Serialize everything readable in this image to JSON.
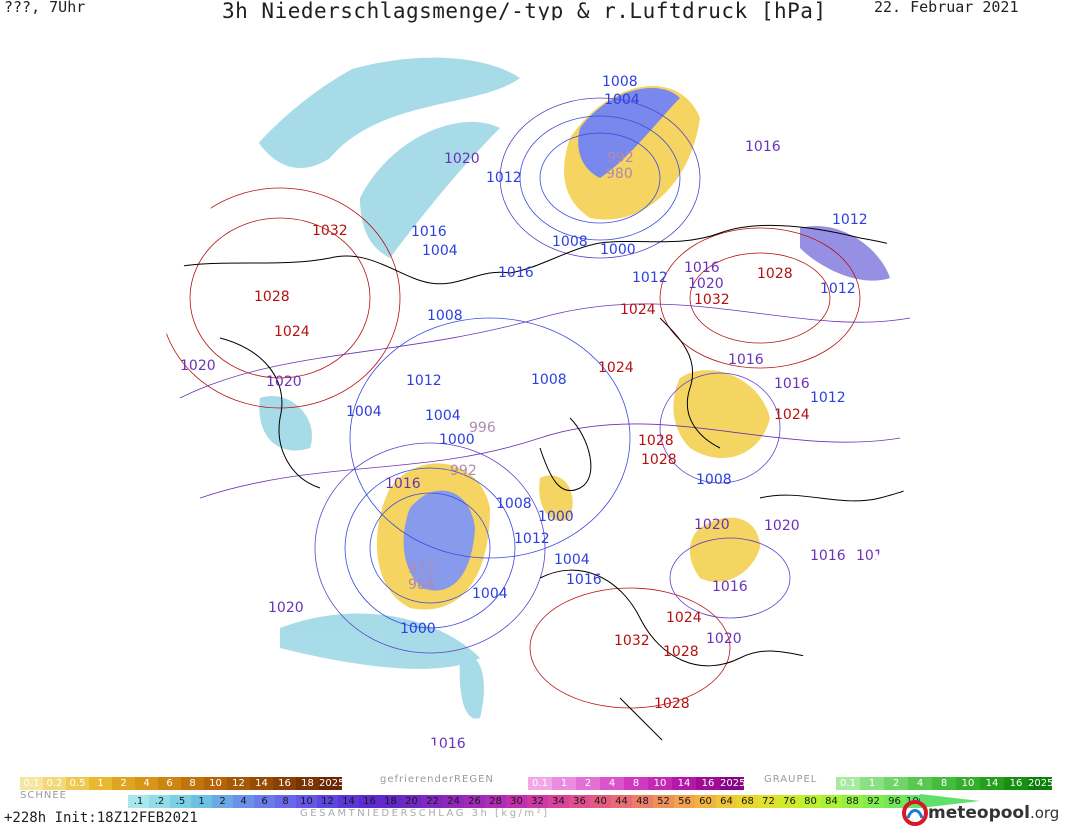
{
  "header": {
    "left": "???, 7Uhr",
    "title": "3h Niederschlagsmenge/-typ & r.Luftdruck [hPa]",
    "date": "22. Februar 2021"
  },
  "map": {
    "pressure_labels": [
      {
        "text": "1008",
        "kind": "low"
      },
      {
        "text": "1004",
        "kind": "low"
      },
      {
        "text": "1016",
        "kind": "mid"
      },
      {
        "text": "1020",
        "kind": "mid"
      },
      {
        "text": "992",
        "kind": "grey"
      },
      {
        "text": "980",
        "kind": "grey"
      },
      {
        "text": "1012",
        "kind": "low"
      },
      {
        "text": "1012",
        "kind": "low"
      },
      {
        "text": "1032",
        "kind": "high"
      },
      {
        "text": "1016",
        "kind": "low"
      },
      {
        "text": "1004",
        "kind": "low"
      },
      {
        "text": "1008",
        "kind": "low"
      },
      {
        "text": "1000",
        "kind": "low"
      },
      {
        "text": "1016",
        "kind": "low"
      },
      {
        "text": "1012",
        "kind": "low"
      },
      {
        "text": "1016",
        "kind": "mid"
      },
      {
        "text": "1020",
        "kind": "mid"
      },
      {
        "text": "1028",
        "kind": "high"
      },
      {
        "text": "1032",
        "kind": "high"
      },
      {
        "text": "1012",
        "kind": "low"
      },
      {
        "text": "1028",
        "kind": "high"
      },
      {
        "text": "1024",
        "kind": "high"
      },
      {
        "text": "1008",
        "kind": "low"
      },
      {
        "text": "1024",
        "kind": "high"
      },
      {
        "text": "1020",
        "kind": "mid"
      },
      {
        "text": "1020",
        "kind": "mid"
      },
      {
        "text": "1012",
        "kind": "low"
      },
      {
        "text": "1008",
        "kind": "low"
      },
      {
        "text": "1024",
        "kind": "high"
      },
      {
        "text": "1016",
        "kind": "mid"
      },
      {
        "text": "1016",
        "kind": "mid"
      },
      {
        "text": "1004",
        "kind": "low"
      },
      {
        "text": "1004",
        "kind": "low"
      },
      {
        "text": "996",
        "kind": "grey"
      },
      {
        "text": "1000",
        "kind": "low"
      },
      {
        "text": "1024",
        "kind": "high"
      },
      {
        "text": "1012",
        "kind": "low"
      },
      {
        "text": "1028",
        "kind": "high"
      },
      {
        "text": "1028",
        "kind": "high"
      },
      {
        "text": "1008",
        "kind": "low"
      },
      {
        "text": "992",
        "kind": "grey"
      },
      {
        "text": "1020",
        "kind": "mid"
      },
      {
        "text": "1016",
        "kind": "mid"
      },
      {
        "text": "1008",
        "kind": "low"
      },
      {
        "text": "1000",
        "kind": "low"
      },
      {
        "text": "1012",
        "kind": "low"
      },
      {
        "text": "1020",
        "kind": "mid"
      },
      {
        "text": "1004",
        "kind": "low"
      },
      {
        "text": "1016",
        "kind": "low"
      },
      {
        "text": "972",
        "kind": "grey"
      },
      {
        "text": "984",
        "kind": "grey"
      },
      {
        "text": "1016",
        "kind": "mid"
      },
      {
        "text": "1016",
        "kind": "mid"
      },
      {
        "text": "1004",
        "kind": "low"
      },
      {
        "text": "1016",
        "kind": "mid"
      },
      {
        "text": "1020",
        "kind": "mid"
      },
      {
        "text": "1024",
        "kind": "high"
      },
      {
        "text": "1000",
        "kind": "low"
      },
      {
        "text": "1032",
        "kind": "high"
      },
      {
        "text": "1028",
        "kind": "high"
      },
      {
        "text": "1020",
        "kind": "mid"
      },
      {
        "text": "1028",
        "kind": "high"
      },
      {
        "text": "1016",
        "kind": "mid"
      }
    ],
    "colors": {
      "low": "#2c3fe0",
      "mid": "#6a32b8",
      "high": "#b81010",
      "grey": "#b08ab0"
    }
  },
  "legend": {
    "snow_title": "SCHNEE",
    "snow_labels": [
      "0.1",
      "0.2",
      "0.5",
      "1",
      "2",
      "4",
      "6",
      "8",
      "10",
      "12",
      "14",
      "16",
      "18",
      "2025+"
    ],
    "snow_colors": [
      "#f6e6a0",
      "#f2d878",
      "#eecb50",
      "#e8b830",
      "#e0a520",
      "#d89518",
      "#cc8510",
      "#c0750c",
      "#b36508",
      "#a55806",
      "#974c05",
      "#883f04",
      "#7a3303",
      "#6a2802"
    ],
    "freezing_title": "gefrierenderREGEN",
    "freezing_labels": [
      "0.1",
      "1",
      "2",
      "4",
      "8",
      "10",
      "14",
      "16",
      "2025+"
    ],
    "freezing_colors": [
      "#f2a8e8",
      "#ec8ce0",
      "#e470d6",
      "#dc54cc",
      "#d038c0",
      "#c428b4",
      "#b418a6",
      "#a00c96",
      "#880486"
    ],
    "graupel_title": "GRAUPEL",
    "graupel_labels": [
      "0.1",
      "1",
      "2",
      "4",
      "8",
      "10",
      "14",
      "16",
      "2025+"
    ],
    "graupel_colors": [
      "#a8eaa0",
      "#8ce084",
      "#70d468",
      "#58c850",
      "#44bc3c",
      "#34ae2c",
      "#24a01e",
      "#169012",
      "#0a8008"
    ],
    "total_labels": [
      ".1",
      ".2",
      ".5",
      "1",
      "2",
      "4",
      "6",
      "8",
      "10",
      "12",
      "14",
      "16",
      "18",
      "20",
      "22",
      "24",
      "26",
      "28",
      "30",
      "32",
      "34",
      "36",
      "40",
      "44",
      "48",
      "52",
      "56",
      "60",
      "64",
      "68",
      "72",
      "76",
      "80",
      "84",
      "88",
      "92",
      "96",
      "100"
    ],
    "total_colors": [
      "#a8e8ec",
      "#90dce8",
      "#7cd0e4",
      "#6cc0e4",
      "#6aa8e6",
      "#6a90e8",
      "#6a7cea",
      "#6a68ea",
      "#6456e6",
      "#5c46e0",
      "#5a38d8",
      "#5c2cd0",
      "#6228c8",
      "#7028c4",
      "#8028c0",
      "#9028bc",
      "#a02ab8",
      "#b02cb4",
      "#c030ae",
      "#cc38a6",
      "#d6429c",
      "#de4e90",
      "#e45c84",
      "#e86c76",
      "#ec7e68",
      "#ee905a",
      "#f0a24c",
      "#f0b440",
      "#eec636",
      "#e8d62e",
      "#dee22a",
      "#ceea2a",
      "#bcf02e",
      "#a8f236",
      "#94f040",
      "#82ec4c",
      "#72e858",
      "#66e464"
    ],
    "total_title": "GESAMTNIEDERSCHLAG 3h [kg/m²]"
  },
  "footer": {
    "left": "+228h  Init:18Z12FEB2021",
    "logo_text": "meteopool",
    "logo_tld": ".org"
  }
}
